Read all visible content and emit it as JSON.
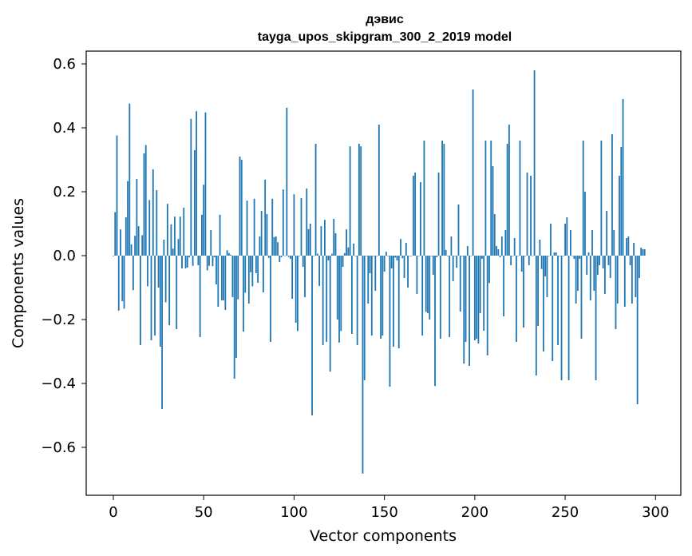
{
  "chart_data": {
    "type": "bar",
    "title": "дэвис",
    "subtitle": "tayga_upos_skipgram_300_2_2019 model",
    "xlabel": "Vector components",
    "ylabel": "Components values",
    "xlim": [
      -15,
      314
    ],
    "ylim": [
      -0.75,
      0.64
    ],
    "xticks": [
      0,
      50,
      100,
      150,
      200,
      250,
      300
    ],
    "yticks": [
      0.6,
      0.4,
      0.2,
      0.0,
      -0.2,
      -0.4,
      -0.6
    ],
    "ytick_labels": [
      "0.6",
      "0.4",
      "0.2",
      "0.0",
      "−0.2",
      "−0.4",
      "−0.6"
    ],
    "xtick_labels": [
      "0",
      "50",
      "100",
      "150",
      "200",
      "250",
      "300"
    ],
    "bar_color": "#1f77b4",
    "values": [
      0.0,
      0.136,
      0.376,
      -0.172,
      0.082,
      -0.143,
      -0.166,
      0.12,
      0.233,
      0.476,
      0.035,
      -0.108,
      0.062,
      0.24,
      0.092,
      -0.28,
      0.064,
      0.32,
      0.346,
      -0.096,
      0.174,
      -0.265,
      0.27,
      -0.25,
      0.205,
      -0.1,
      -0.285,
      -0.48,
      0.05,
      -0.146,
      0.162,
      -0.218,
      0.098,
      0.022,
      0.122,
      -0.23,
      0.052,
      0.122,
      -0.04,
      0.15,
      -0.04,
      -0.037,
      -0.005,
      0.428,
      -0.032,
      0.33,
      0.452,
      -0.03,
      -0.255,
      0.128,
      0.222,
      0.448,
      -0.046,
      -0.032,
      0.08,
      -0.033,
      -0.005,
      -0.09,
      -0.16,
      0.128,
      -0.14,
      -0.14,
      -0.17,
      0.017,
      0.008,
      0.003,
      -0.13,
      -0.385,
      -0.32,
      -0.137,
      0.31,
      0.3,
      -0.238,
      -0.116,
      0.172,
      -0.15,
      -0.052,
      -0.096,
      0.178,
      -0.055,
      -0.085,
      0.06,
      0.14,
      -0.115,
      0.238,
      0.13,
      -0.007,
      -0.27,
      0.178,
      0.058,
      0.06,
      0.042,
      -0.02,
      -0.005,
      0.207,
      0.0,
      0.463,
      -0.004,
      -0.01,
      -0.135,
      0.192,
      -0.21,
      -0.236,
      0.0,
      0.18,
      -0.035,
      -0.13,
      0.21,
      0.083,
      0.1,
      -0.5,
      0.0,
      0.35,
      0.006,
      -0.095,
      0.092,
      -0.28,
      0.112,
      -0.27,
      -0.015,
      -0.363,
      0.006,
      0.115,
      0.07,
      -0.2,
      -0.272,
      -0.236,
      -0.035,
      0.008,
      0.082,
      0.026,
      0.342,
      -0.245,
      0.038,
      0.0,
      -0.28,
      0.35,
      0.342,
      -0.682,
      -0.39,
      0.0,
      -0.15,
      -0.055,
      -0.25,
      0.0,
      -0.11,
      0.0,
      0.41,
      -0.26,
      -0.25,
      -0.05,
      0.012,
      0.0,
      -0.41,
      -0.04,
      -0.285,
      -0.006,
      -0.015,
      -0.29,
      0.052,
      -0.008,
      -0.07,
      0.04,
      -0.1,
      0.0,
      0.0,
      0.25,
      0.26,
      -0.12,
      0.0,
      0.23,
      -0.25,
      0.36,
      -0.176,
      -0.18,
      -0.2,
      0.0,
      -0.06,
      -0.408,
      -0.005,
      0.26,
      -0.26,
      0.36,
      0.35,
      0.018,
      0.0,
      -0.255,
      0.06,
      -0.08,
      0.0,
      -0.038,
      0.16,
      -0.175,
      0.0,
      -0.338,
      -0.27,
      0.03,
      -0.345,
      0.0,
      0.52,
      -0.265,
      -0.26,
      -0.275,
      -0.18,
      -0.01,
      -0.235,
      0.36,
      -0.312,
      -0.086,
      0.36,
      0.28,
      0.13,
      0.03,
      0.02,
      -0.005,
      0.06,
      -0.19,
      0.08,
      0.35,
      0.41,
      -0.03,
      0.0,
      0.055,
      -0.27,
      0.0,
      0.36,
      -0.05,
      -0.225,
      0.0,
      0.26,
      -0.03,
      0.25,
      0.0,
      0.58,
      -0.375,
      -0.22,
      0.05,
      -0.042,
      -0.3,
      -0.065,
      -0.13,
      0.0,
      0.1,
      -0.33,
      0.01,
      0.01,
      -0.28,
      0.0,
      -0.39,
      0.0,
      0.1,
      0.12,
      -0.39,
      0.08,
      0.0,
      -0.01,
      -0.15,
      -0.11,
      -0.01,
      -0.26,
      0.36,
      0.2,
      -0.06,
      0.01,
      -0.14,
      0.08,
      -0.11,
      -0.39,
      -0.06,
      -0.03,
      0.36,
      -0.04,
      -0.12,
      0.14,
      -0.03,
      -0.07,
      0.38,
      0.08,
      -0.23,
      -0.15,
      0.25,
      0.34,
      0.49,
      -0.16,
      0.055,
      0.06,
      -0.03,
      -0.15,
      0.04,
      -0.13,
      -0.465,
      -0.07,
      0.025,
      0.02,
      0.02
    ]
  }
}
